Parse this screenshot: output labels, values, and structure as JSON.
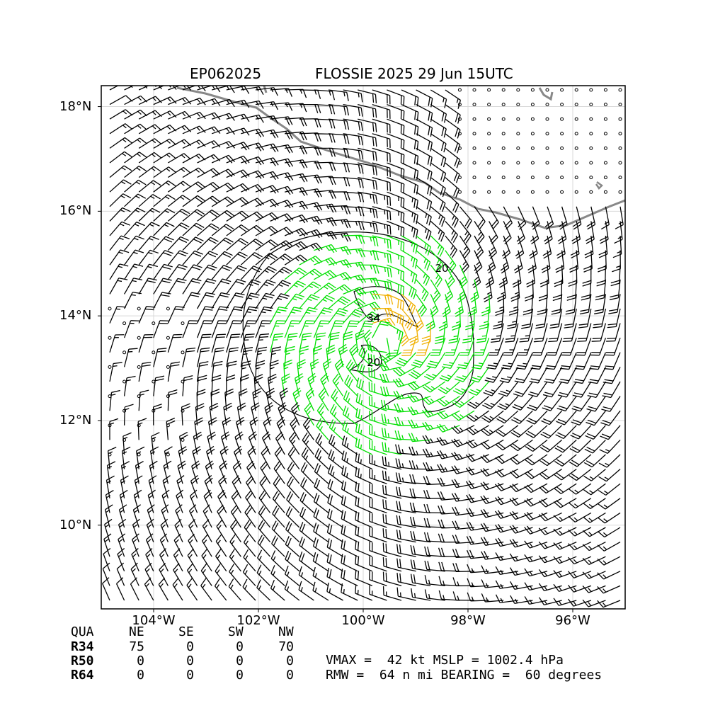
{
  "title": {
    "storm_id": "EP062025",
    "storm_info": "FLOSSIE 2025 29 Jun 15UTC"
  },
  "map": {
    "lon_range": [
      -105,
      -95
    ],
    "lat_range": [
      8.4,
      18.4
    ],
    "lon_ticks": [
      {
        "value": -104,
        "label": "104°W"
      },
      {
        "value": -102,
        "label": "102°W"
      },
      {
        "value": -100,
        "label": "100°W"
      },
      {
        "value": -98,
        "label": "98°W"
      },
      {
        "value": -96,
        "label": "96°W"
      }
    ],
    "lat_ticks": [
      {
        "value": 18,
        "label": "18°N"
      },
      {
        "value": 16,
        "label": "16°N"
      },
      {
        "value": 14,
        "label": "14°N"
      },
      {
        "value": 12,
        "label": "12°N"
      },
      {
        "value": 10,
        "label": "10°N"
      }
    ],
    "grid": true,
    "storm_center": {
      "lon": -99.6,
      "lat": 13.55
    },
    "contour_labels": [
      {
        "text": "20",
        "lon": -98.5,
        "lat": 14.9
      },
      {
        "text": "34",
        "lon": -99.8,
        "lat": 13.95
      },
      {
        "text": "20",
        "lon": -99.8,
        "lat": 13.1
      }
    ],
    "colors": {
      "barb_default": "#000000",
      "barb_34kt": "#00e000",
      "barb_50kt": "#f0b000",
      "coastline": "#888888",
      "contour": "#000000"
    }
  },
  "wind_radii": {
    "headers": [
      "QUA",
      "NE",
      "SE",
      "SW",
      "NW"
    ],
    "rows": [
      {
        "label": "R34",
        "values": [
          "75",
          "0",
          "0",
          "70"
        ]
      },
      {
        "label": "R50",
        "values": [
          "0",
          "0",
          "0",
          "0"
        ]
      },
      {
        "label": "R64",
        "values": [
          "0",
          "0",
          "0",
          "0"
        ]
      }
    ]
  },
  "stats": {
    "line1": "VMAX =  42 kt MSLP = 1002.4 hPa",
    "line2": "RMW =  64 n mi BEARING =  60 degrees"
  }
}
